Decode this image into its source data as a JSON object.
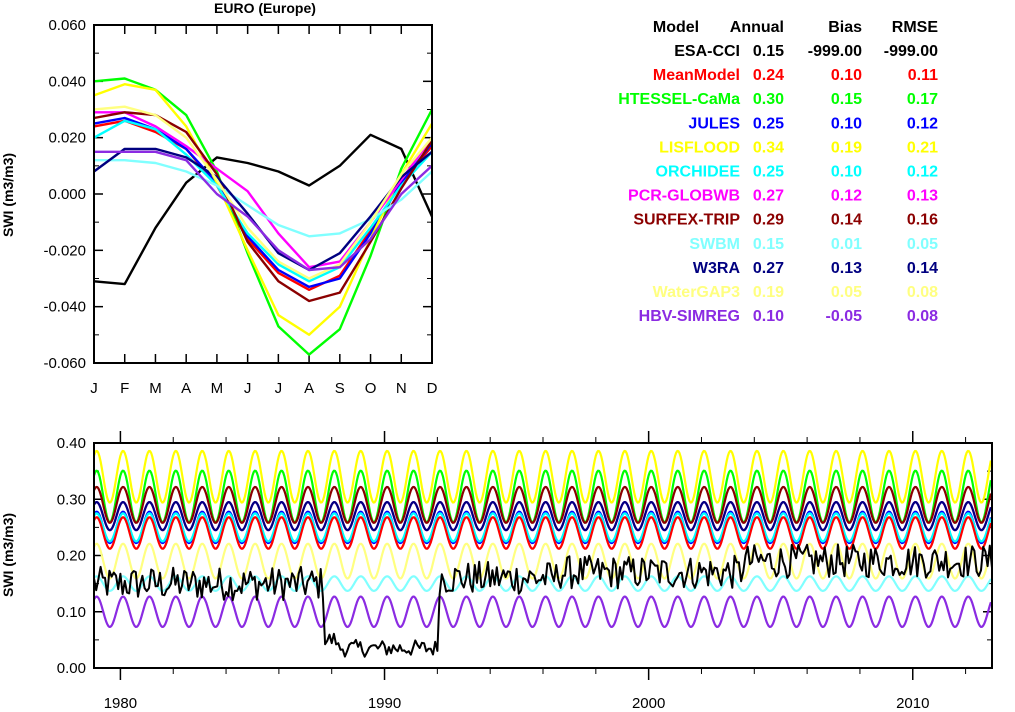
{
  "chart_data": [
    {
      "type": "line",
      "title": "EURO (Europe)",
      "ylabel": "SWI (m3/m3)",
      "categories": [
        "J",
        "F",
        "M",
        "A",
        "M",
        "J",
        "J",
        "A",
        "S",
        "O",
        "N",
        "D"
      ],
      "ylim": [
        -0.06,
        0.06
      ],
      "yticks": [
        "0.060",
        "0.040",
        "0.020",
        "0.000",
        "-0.020",
        "-0.040",
        "-0.060"
      ],
      "grid": false,
      "series": [
        {
          "name": "ESA-CCI",
          "color": "#000000",
          "values": [
            -0.031,
            -0.032,
            -0.012,
            0.004,
            0.013,
            0.011,
            0.008,
            0.003,
            0.01,
            0.021,
            0.016,
            -0.008
          ]
        },
        {
          "name": "MeanModel",
          "color": "#ff0000",
          "values": [
            0.024,
            0.026,
            0.022,
            0.016,
            0.003,
            -0.016,
            -0.028,
            -0.034,
            -0.029,
            -0.013,
            0.004,
            0.017
          ]
        },
        {
          "name": "HTESSEL-CaMa",
          "color": "#00ff00",
          "values": [
            0.04,
            0.041,
            0.037,
            0.028,
            0.008,
            -0.021,
            -0.047,
            -0.057,
            -0.048,
            -0.022,
            0.009,
            0.03
          ]
        },
        {
          "name": "JULES",
          "color": "#0000ff",
          "values": [
            0.025,
            0.027,
            0.023,
            0.016,
            0.004,
            -0.015,
            -0.027,
            -0.033,
            -0.03,
            -0.014,
            0.004,
            0.018
          ]
        },
        {
          "name": "LISFLOOD",
          "color": "#ffff00",
          "values": [
            0.035,
            0.039,
            0.037,
            0.024,
            0.004,
            -0.02,
            -0.043,
            -0.05,
            -0.04,
            -0.016,
            0.007,
            0.025
          ]
        },
        {
          "name": "ORCHIDEE",
          "color": "#00ffff",
          "values": [
            0.02,
            0.026,
            0.023,
            0.014,
            0.003,
            -0.014,
            -0.025,
            -0.031,
            -0.026,
            -0.012,
            0.003,
            0.015
          ]
        },
        {
          "name": "PCR-GLOBWB",
          "color": "#ff00ff",
          "values": [
            0.029,
            0.029,
            0.024,
            0.017,
            0.009,
            0.001,
            -0.014,
            -0.026,
            -0.024,
            -0.01,
            0.005,
            0.02
          ]
        },
        {
          "name": "SURFEX-TRIP",
          "color": "#8b0000",
          "values": [
            0.027,
            0.029,
            0.028,
            0.022,
            0.007,
            -0.017,
            -0.031,
            -0.038,
            -0.035,
            -0.017,
            0.002,
            0.019
          ]
        },
        {
          "name": "SWBM",
          "color": "#80ffff",
          "values": [
            0.012,
            0.012,
            0.011,
            0.008,
            0.003,
            -0.004,
            -0.011,
            -0.015,
            -0.014,
            -0.009,
            -0.002,
            0.008
          ]
        },
        {
          "name": "W3RA",
          "color": "#000080",
          "values": [
            0.008,
            0.016,
            0.016,
            0.013,
            0.006,
            -0.007,
            -0.021,
            -0.027,
            -0.021,
            -0.008,
            0.006,
            0.015
          ]
        },
        {
          "name": "WaterGAP3",
          "color": "#ffff80",
          "values": [
            0.03,
            0.031,
            0.028,
            0.02,
            0.005,
            -0.012,
            -0.024,
            -0.03,
            -0.025,
            -0.01,
            0.007,
            0.02
          ]
        },
        {
          "name": "HBV-SIMREG",
          "color": "#8b2be2",
          "values": [
            0.015,
            0.015,
            0.015,
            0.012,
            0.0,
            -0.008,
            -0.02,
            -0.027,
            -0.026,
            -0.016,
            0.0,
            0.01
          ]
        }
      ]
    },
    {
      "type": "line",
      "title": "",
      "ylabel": "SWI (m3/m3)",
      "xlim": [
        1979,
        2013
      ],
      "xticks": [
        1980,
        1990,
        2000,
        2010
      ],
      "ylim": [
        0.0,
        0.4
      ],
      "yticks": [
        "0.40",
        "0.30",
        "0.20",
        "0.10",
        "0.00"
      ],
      "grid": false,
      "series": [
        {
          "name": "LISFLOOD",
          "color": "#ffff00",
          "mean": 0.34,
          "amplitude": 0.046
        },
        {
          "name": "HTESSEL-CaMa",
          "color": "#00ff00",
          "mean": 0.305,
          "amplitude": 0.046
        },
        {
          "name": "SURFEX-TRIP",
          "color": "#8b0000",
          "mean": 0.29,
          "amplitude": 0.032
        },
        {
          "name": "PCR-GLOBWB",
          "color": "#ff00ff",
          "mean": 0.27,
          "amplitude": 0.025
        },
        {
          "name": "W3RA",
          "color": "#000080",
          "mean": 0.27,
          "amplitude": 0.025
        },
        {
          "name": "JULES",
          "color": "#0000ff",
          "mean": 0.25,
          "amplitude": 0.028
        },
        {
          "name": "ORCHIDEE",
          "color": "#00ffff",
          "mean": 0.25,
          "amplitude": 0.025
        },
        {
          "name": "MeanModel",
          "color": "#ff0000",
          "mean": 0.24,
          "amplitude": 0.028
        },
        {
          "name": "WaterGAP3",
          "color": "#ffff80",
          "mean": 0.19,
          "amplitude": 0.031
        },
        {
          "name": "SWBM",
          "color": "#80ffff",
          "mean": 0.15,
          "amplitude": 0.013
        },
        {
          "name": "HBV-SIMREG",
          "color": "#8b2be2",
          "mean": 0.1,
          "amplitude": 0.027
        },
        {
          "name": "ESA-CCI",
          "color": "#000000",
          "segments": [
            {
              "from": 1979.0,
              "to": 1987.7,
              "level": 0.15
            },
            {
              "from": 1987.7,
              "to": 1988.2,
              "level": 0.05
            },
            {
              "from": 1988.2,
              "to": 1992.0,
              "level": 0.035
            },
            {
              "from": 1992.0,
              "to": 1996.5,
              "level": 0.16
            },
            {
              "from": 1996.5,
              "to": 2003.5,
              "level": 0.17
            },
            {
              "from": 2003.5,
              "to": 2013.0,
              "level": 0.19
            }
          ]
        }
      ]
    }
  ],
  "table": {
    "headers": [
      "Model",
      "Annual",
      "Bias",
      "RMSE"
    ],
    "rows": [
      {
        "model": "ESA-CCI",
        "annual": "0.15",
        "bias": "-999.00",
        "rmse": "-999.00",
        "color": "#000000"
      },
      {
        "model": "MeanModel",
        "annual": "0.24",
        "bias": "0.10",
        "rmse": "0.11",
        "color": "#ff0000"
      },
      {
        "model": "HTESSEL-CaMa",
        "annual": "0.30",
        "bias": "0.15",
        "rmse": "0.17",
        "color": "#00ff00"
      },
      {
        "model": "JULES",
        "annual": "0.25",
        "bias": "0.10",
        "rmse": "0.12",
        "color": "#0000ff"
      },
      {
        "model": "LISFLOOD",
        "annual": "0.34",
        "bias": "0.19",
        "rmse": "0.21",
        "color": "#ffff00"
      },
      {
        "model": "ORCHIDEE",
        "annual": "0.25",
        "bias": "0.10",
        "rmse": "0.12",
        "color": "#00ffff"
      },
      {
        "model": "PCR-GLOBWB",
        "annual": "0.27",
        "bias": "0.12",
        "rmse": "0.13",
        "color": "#ff00ff"
      },
      {
        "model": "SURFEX-TRIP",
        "annual": "0.29",
        "bias": "0.14",
        "rmse": "0.16",
        "color": "#8b0000"
      },
      {
        "model": "SWBM",
        "annual": "0.15",
        "bias": "0.01",
        "rmse": "0.05",
        "color": "#80ffff"
      },
      {
        "model": "W3RA",
        "annual": "0.27",
        "bias": "0.13",
        "rmse": "0.14",
        "color": "#000080"
      },
      {
        "model": "WaterGAP3",
        "annual": "0.19",
        "bias": "0.05",
        "rmse": "0.08",
        "color": "#ffff80"
      },
      {
        "model": "HBV-SIMREG",
        "annual": "0.10",
        "bias": "-0.05",
        "rmse": "0.08",
        "color": "#8b2be2"
      }
    ]
  }
}
